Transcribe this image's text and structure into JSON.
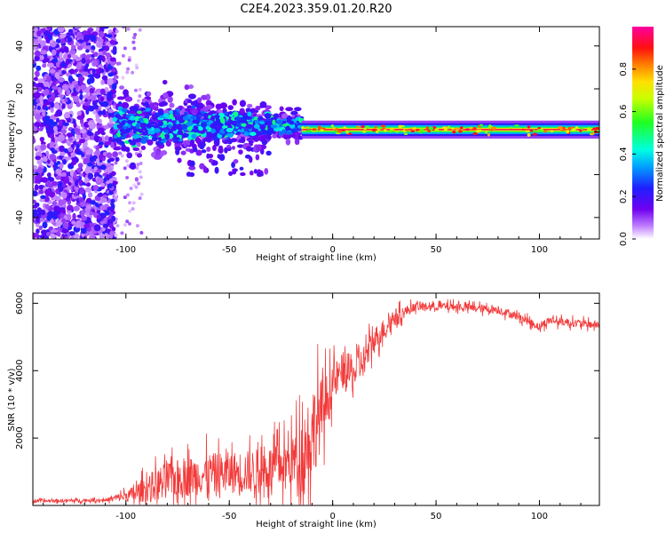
{
  "title": "C2E4.2023.359.01.20.R20",
  "colors": {
    "snr_line": "#f23a3a",
    "axis": "#000000",
    "background": "#ffffff"
  },
  "chart_data": [
    {
      "type": "heatmap",
      "name": "spectrogram",
      "xlabel": "Height of straight line (km)",
      "ylabel": "Frequency (Hz)",
      "xlim": [
        -145,
        129
      ],
      "ylim": [
        -50,
        49
      ],
      "xticks": [
        -100,
        -50,
        0,
        50,
        100
      ],
      "yticks": [
        -40,
        -20,
        0,
        20,
        40
      ],
      "colorbar": {
        "label": "Normalized spectral amplitude",
        "range": [
          0,
          1
        ],
        "ticks": [
          0.0,
          0.2,
          0.4,
          0.6,
          0.8
        ],
        "tick_labels": [
          "0.0",
          "0.2",
          "0.4",
          "0.6",
          "0.8"
        ],
        "colormap": "rainbow (violet-blue-cyan-green-yellow-red-magenta)"
      },
      "features": [
        {
          "name": "broadband noise",
          "x_range": [
            -145,
            -105
          ],
          "freq_range": [
            -50,
            49
          ],
          "amplitude": [
            0.05,
            0.25
          ]
        },
        {
          "name": "sparse noise",
          "x_range": [
            -105,
            -92
          ],
          "freq_range": [
            -50,
            49
          ],
          "amplitude": [
            0.02,
            0.1
          ]
        },
        {
          "name": "carrier band (noisy)",
          "x_range": [
            -105,
            -15
          ],
          "center_hz": 3,
          "width_hz": [
            16,
            6
          ],
          "amplitude": [
            0.2,
            0.5
          ]
        },
        {
          "name": "carrier line (clean)",
          "x_range": [
            -15,
            129
          ],
          "center_hz": 1,
          "width_hz": 3,
          "amplitude": [
            0.8,
            0.95
          ]
        }
      ]
    },
    {
      "type": "line",
      "name": "snr",
      "xlabel": "Height of straight line (km)",
      "ylabel": "SNR (10 * v/v)",
      "xlim": [
        -145,
        129
      ],
      "ylim": [
        0,
        6300
      ],
      "xticks": [
        -100,
        -50,
        0,
        50,
        100
      ],
      "yticks": [
        2000,
        4000,
        6000
      ],
      "series": [
        {
          "name": "SNR",
          "trend": {
            "x": [
              -145,
              -110,
              -100,
              -95,
              -90,
              -80,
              -60,
              -40,
              -30,
              -20,
              -15,
              -10,
              -5,
              0,
              5,
              10,
              15,
              20,
              30,
              40,
              50,
              60,
              70,
              80,
              90,
              100,
              105,
              110,
              120,
              129
            ],
            "y": [
              130,
              160,
              280,
              360,
              500,
              750,
              950,
              1000,
              1100,
              1300,
              1500,
              2200,
              2800,
              3600,
              4000,
              3900,
              4300,
              4900,
              5600,
              5900,
              5900,
              5900,
              5850,
              5800,
              5600,
              5300,
              5500,
              5450,
              5400,
              5350
            ]
          },
          "noise_amplitude": {
            "x": [
              -145,
              -110,
              -100,
              -90,
              -80,
              -40,
              -20,
              -15,
              -10,
              0,
              10,
              20,
              30,
              40,
              80,
              100,
              129
            ],
            "y": [
              60,
              60,
              200,
              500,
              700,
              800,
              900,
              1500,
              1800,
              700,
              700,
              500,
              300,
              150,
              150,
              150,
              150
            ]
          }
        }
      ]
    }
  ]
}
